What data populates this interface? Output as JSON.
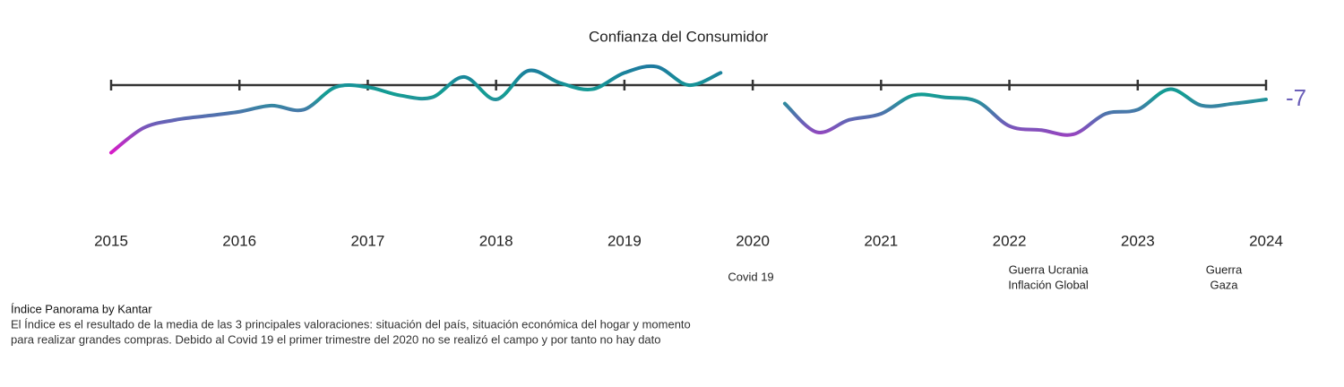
{
  "chart_data": {
    "type": "line",
    "categories": [
      "2015",
      null,
      null,
      null,
      "2016",
      null,
      null,
      null,
      "2017",
      null,
      null,
      null,
      "2018",
      null,
      null,
      null,
      "2019",
      null,
      null,
      null,
      "2020",
      null,
      null,
      null,
      "2021",
      null,
      null,
      null,
      "2022",
      null,
      null,
      null,
      "2023",
      null,
      null,
      null,
      "2024"
    ],
    "series": [
      {
        "name": "Confianza del Consumidor",
        "colors": [
          "#d81bc8",
          "#6b5fb8",
          "#139e93",
          "#1e78a0"
        ],
        "values": [
          -33,
          -21,
          -17,
          -15,
          -13,
          -10,
          -12,
          -1,
          -1,
          -5,
          -6,
          4,
          -7,
          7,
          1,
          -2,
          6,
          9,
          0,
          6,
          null,
          -9,
          -23,
          -17,
          -14,
          -5,
          -6,
          -8,
          -20,
          -22,
          -24,
          -14,
          -12,
          -2,
          -10,
          -9,
          -7
        ]
      }
    ],
    "ylim": [
      -45,
      15
    ],
    "annotations": [
      {
        "lines": [
          "Covid 19"
        ]
      },
      {
        "lines": [
          "Guerra Ucrania",
          "Inflación Global"
        ]
      },
      {
        "lines": [
          "Guerra",
          "Gaza"
        ]
      }
    ],
    "notes": [
      "Índice Panorama by Kantar",
      "El Índice es el resultado de la media de las 3 principales valoraciones: situación del país, situación económica del hogar y momento",
      "para realizar grandes compras. Debido al Covid 19 el primer trimestre del 2020 no se realizó el campo y por tanto no hay dato"
    ]
  }
}
